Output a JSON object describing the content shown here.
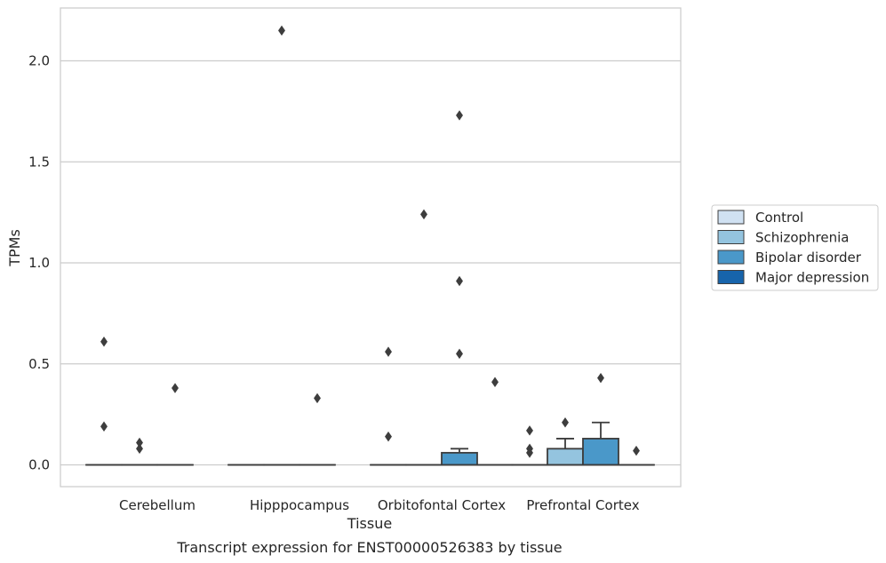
{
  "chart_data": {
    "type": "box",
    "title": "",
    "caption": "Transcript expression for ENST00000526383 by tissue",
    "xlabel": "Tissue",
    "ylabel": "TPMs",
    "ylim": [
      -0.1,
      2.26
    ],
    "yticks": [
      0.0,
      0.5,
      1.0,
      1.5,
      2.0
    ],
    "ytick_labels": [
      "0.0",
      "0.5",
      "1.0",
      "1.5",
      "2.0"
    ],
    "grid": "horizontal",
    "legend_position": "right",
    "categories": [
      "Cerebellum",
      "Hipppocampus",
      "Orbitofontal Cortex",
      "Prefrontal Cortex"
    ],
    "series": [
      {
        "name": "Control",
        "color": "#d0e1f2"
      },
      {
        "name": "Schizophrenia",
        "color": "#94c4df"
      },
      {
        "name": "Bipolar disorder",
        "color": "#4a98c9"
      },
      {
        "name": "Major depression",
        "color": "#1764ab"
      }
    ],
    "boxes": [
      {
        "category": 0,
        "series": 0,
        "q1": 0,
        "median": 0,
        "q3": 0,
        "whisker_low": 0,
        "whisker_high": 0,
        "outliers": [
          0.61,
          0.19
        ]
      },
      {
        "category": 0,
        "series": 1,
        "q1": 0,
        "median": 0,
        "q3": 0,
        "whisker_low": 0,
        "whisker_high": 0,
        "outliers": [
          0.11,
          0.08
        ]
      },
      {
        "category": 0,
        "series": 2,
        "q1": 0,
        "median": 0,
        "q3": 0,
        "whisker_low": 0,
        "whisker_high": 0,
        "outliers": [
          0.38
        ]
      },
      {
        "category": 1,
        "series": 0,
        "q1": 0,
        "median": 0,
        "q3": 0,
        "whisker_low": 0,
        "whisker_high": 0,
        "outliers": []
      },
      {
        "category": 1,
        "series": 1,
        "q1": 0,
        "median": 0,
        "q3": 0,
        "whisker_low": 0,
        "whisker_high": 0,
        "outliers": [
          2.15
        ]
      },
      {
        "category": 1,
        "series": 2,
        "q1": 0,
        "median": 0,
        "q3": 0,
        "whisker_low": 0,
        "whisker_high": 0,
        "outliers": [
          0.33
        ]
      },
      {
        "category": 2,
        "series": 0,
        "q1": 0,
        "median": 0,
        "q3": 0,
        "whisker_low": 0,
        "whisker_high": 0,
        "outliers": [
          0.56,
          0.14
        ]
      },
      {
        "category": 2,
        "series": 1,
        "q1": 0,
        "median": 0,
        "q3": 0,
        "whisker_low": 0,
        "whisker_high": 0,
        "outliers": [
          1.24
        ]
      },
      {
        "category": 2,
        "series": 2,
        "q1": 0,
        "median": 0,
        "q3": 0.06,
        "whisker_low": 0,
        "whisker_high": 0.08,
        "outliers": [
          1.73,
          0.91,
          0.55
        ]
      },
      {
        "category": 2,
        "series": 3,
        "q1": 0,
        "median": 0,
        "q3": 0,
        "whisker_low": 0,
        "whisker_high": 0,
        "outliers": [
          0.41
        ]
      },
      {
        "category": 3,
        "series": 0,
        "q1": 0,
        "median": 0,
        "q3": 0,
        "whisker_low": 0,
        "whisker_high": 0,
        "outliers": [
          0.17,
          0.08,
          0.06
        ]
      },
      {
        "category": 3,
        "series": 1,
        "q1": 0,
        "median": 0,
        "q3": 0.08,
        "whisker_low": 0,
        "whisker_high": 0.13,
        "outliers": [
          0.21
        ]
      },
      {
        "category": 3,
        "series": 2,
        "q1": 0,
        "median": 0,
        "q3": 0.13,
        "whisker_low": 0,
        "whisker_high": 0.21,
        "outliers": [
          0.43
        ]
      },
      {
        "category": 3,
        "series": 3,
        "q1": 0,
        "median": 0,
        "q3": 0,
        "whisker_low": 0,
        "whisker_high": 0,
        "outliers": [
          0.07
        ]
      }
    ]
  }
}
